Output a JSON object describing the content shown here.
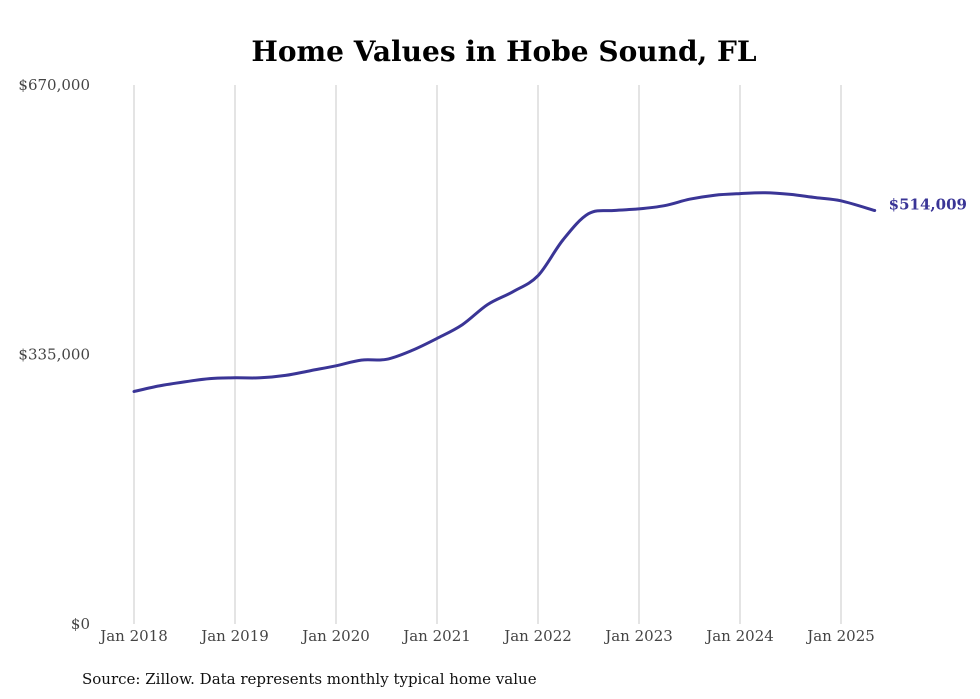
{
  "chart_data": {
    "type": "line",
    "title": "Home Values in Hobe Sound, FL",
    "source": "Source: Zillow. Data represents monthly typical home value",
    "ylim": [
      0,
      670000
    ],
    "yticks": [
      {
        "value": 0,
        "label": "$0"
      },
      {
        "value": 335000,
        "label": "$335,000"
      },
      {
        "value": 670000,
        "label": "$670,000"
      }
    ],
    "xticks": [
      {
        "value": "2018-01",
        "label": "Jan 2018"
      },
      {
        "value": "2019-01",
        "label": "Jan 2019"
      },
      {
        "value": "2020-01",
        "label": "Jan 2020"
      },
      {
        "value": "2021-01",
        "label": "Jan 2021"
      },
      {
        "value": "2022-01",
        "label": "Jan 2022"
      },
      {
        "value": "2023-01",
        "label": "Jan 2023"
      },
      {
        "value": "2024-01",
        "label": "Jan 2024"
      },
      {
        "value": "2025-01",
        "label": "Jan 2025"
      }
    ],
    "grid": "vertical",
    "color": "#3a3596",
    "end_label": "$514,009",
    "series": [
      {
        "points": [
          {
            "x": "2018-01",
            "y": 289000
          },
          {
            "x": "2018-04",
            "y": 296000
          },
          {
            "x": "2018-07",
            "y": 301000
          },
          {
            "x": "2018-10",
            "y": 305000
          },
          {
            "x": "2019-01",
            "y": 306000
          },
          {
            "x": "2019-04",
            "y": 306000
          },
          {
            "x": "2019-07",
            "y": 309000
          },
          {
            "x": "2019-10",
            "y": 315000
          },
          {
            "x": "2020-01",
            "y": 321000
          },
          {
            "x": "2020-04",
            "y": 328000
          },
          {
            "x": "2020-07",
            "y": 329000
          },
          {
            "x": "2020-10",
            "y": 340000
          },
          {
            "x": "2021-01",
            "y": 355000
          },
          {
            "x": "2021-04",
            "y": 372000
          },
          {
            "x": "2021-07",
            "y": 397000
          },
          {
            "x": "2021-10",
            "y": 413000
          },
          {
            "x": "2022-01",
            "y": 433000
          },
          {
            "x": "2022-04",
            "y": 478000
          },
          {
            "x": "2022-07",
            "y": 510000
          },
          {
            "x": "2022-10",
            "y": 514000
          },
          {
            "x": "2023-01",
            "y": 516000
          },
          {
            "x": "2023-04",
            "y": 520000
          },
          {
            "x": "2023-07",
            "y": 528000
          },
          {
            "x": "2023-10",
            "y": 533000
          },
          {
            "x": "2024-01",
            "y": 535000
          },
          {
            "x": "2024-04",
            "y": 536000
          },
          {
            "x": "2024-07",
            "y": 534000
          },
          {
            "x": "2024-10",
            "y": 530000
          },
          {
            "x": "2025-01",
            "y": 526000
          },
          {
            "x": "2025-05",
            "y": 514009
          }
        ]
      }
    ]
  }
}
